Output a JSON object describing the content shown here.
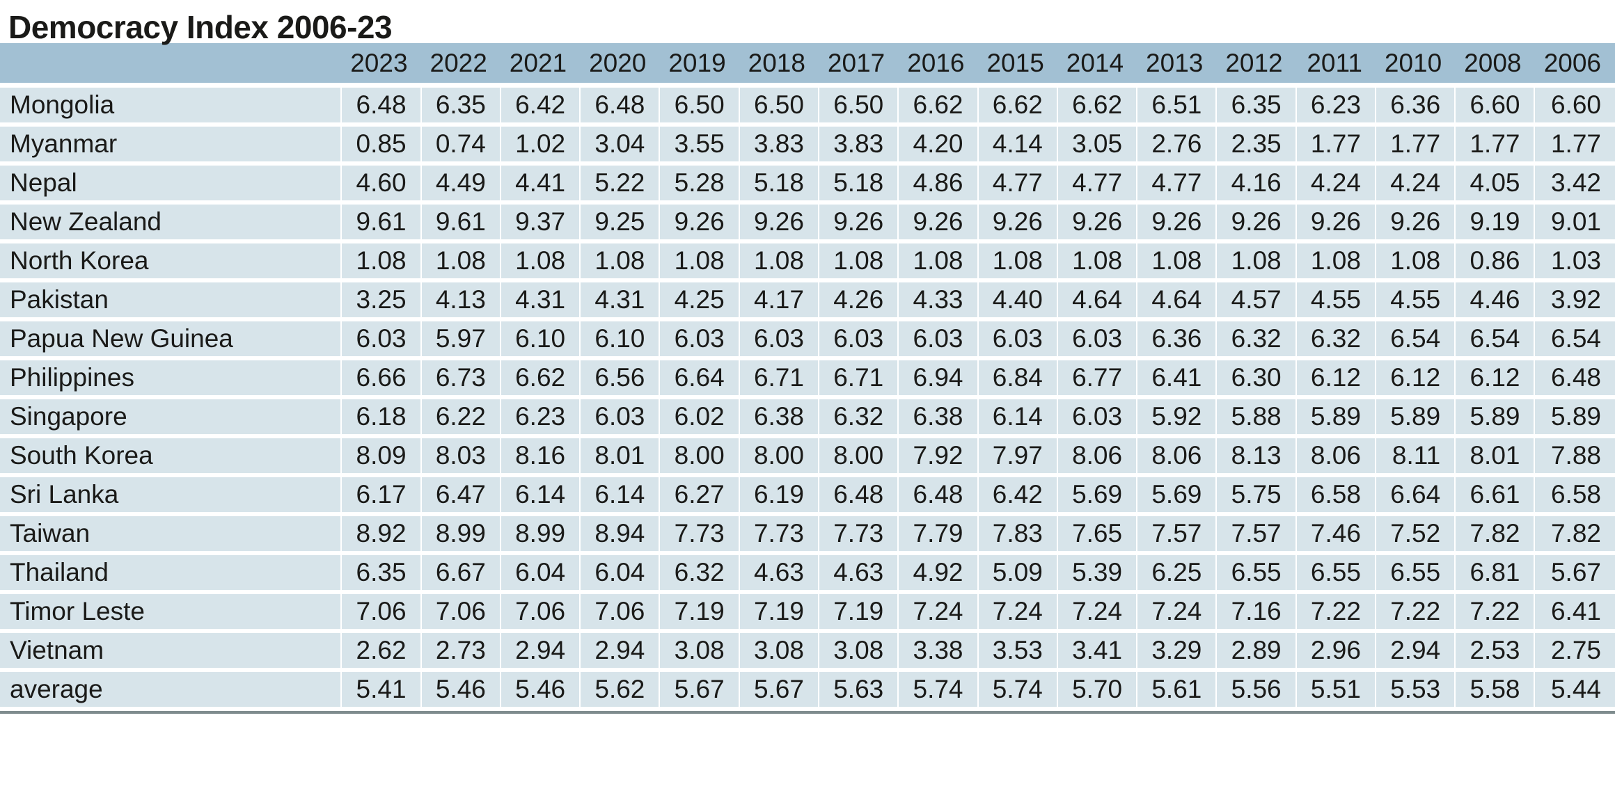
{
  "title": "Democracy Index 2006-23",
  "colors": {
    "header_bg": "#a2c0d3",
    "row_bg": "#d7e4ea",
    "text": "#1a1a18",
    "bottom_rule": "#7f8c8e"
  },
  "chart_data": {
    "type": "table",
    "title": "Democracy Index 2006-23",
    "columns": [
      "2023",
      "2022",
      "2021",
      "2020",
      "2019",
      "2018",
      "2017",
      "2016",
      "2015",
      "2014",
      "2013",
      "2012",
      "2011",
      "2010",
      "2008",
      "2006"
    ],
    "rows": [
      {
        "label": "Mongolia",
        "values": [
          "6.48",
          "6.35",
          "6.42",
          "6.48",
          "6.50",
          "6.50",
          "6.50",
          "6.62",
          "6.62",
          "6.62",
          "6.51",
          "6.35",
          "6.23",
          "6.36",
          "6.60",
          "6.60"
        ]
      },
      {
        "label": "Myanmar",
        "values": [
          "0.85",
          "0.74",
          "1.02",
          "3.04",
          "3.55",
          "3.83",
          "3.83",
          "4.20",
          "4.14",
          "3.05",
          "2.76",
          "2.35",
          "1.77",
          "1.77",
          "1.77",
          "1.77"
        ]
      },
      {
        "label": "Nepal",
        "values": [
          "4.60",
          "4.49",
          "4.41",
          "5.22",
          "5.28",
          "5.18",
          "5.18",
          "4.86",
          "4.77",
          "4.77",
          "4.77",
          "4.16",
          "4.24",
          "4.24",
          "4.05",
          "3.42"
        ]
      },
      {
        "label": "New Zealand",
        "values": [
          "9.61",
          "9.61",
          "9.37",
          "9.25",
          "9.26",
          "9.26",
          "9.26",
          "9.26",
          "9.26",
          "9.26",
          "9.26",
          "9.26",
          "9.26",
          "9.26",
          "9.19",
          "9.01"
        ]
      },
      {
        "label": "North Korea",
        "values": [
          "1.08",
          "1.08",
          "1.08",
          "1.08",
          "1.08",
          "1.08",
          "1.08",
          "1.08",
          "1.08",
          "1.08",
          "1.08",
          "1.08",
          "1.08",
          "1.08",
          "0.86",
          "1.03"
        ]
      },
      {
        "label": "Pakistan",
        "values": [
          "3.25",
          "4.13",
          "4.31",
          "4.31",
          "4.25",
          "4.17",
          "4.26",
          "4.33",
          "4.40",
          "4.64",
          "4.64",
          "4.57",
          "4.55",
          "4.55",
          "4.46",
          "3.92"
        ]
      },
      {
        "label": "Papua New Guinea",
        "values": [
          "6.03",
          "5.97",
          "6.10",
          "6.10",
          "6.03",
          "6.03",
          "6.03",
          "6.03",
          "6.03",
          "6.03",
          "6.36",
          "6.32",
          "6.32",
          "6.54",
          "6.54",
          "6.54"
        ]
      },
      {
        "label": "Philippines",
        "values": [
          "6.66",
          "6.73",
          "6.62",
          "6.56",
          "6.64",
          "6.71",
          "6.71",
          "6.94",
          "6.84",
          "6.77",
          "6.41",
          "6.30",
          "6.12",
          "6.12",
          "6.12",
          "6.48"
        ]
      },
      {
        "label": "Singapore",
        "values": [
          "6.18",
          "6.22",
          "6.23",
          "6.03",
          "6.02",
          "6.38",
          "6.32",
          "6.38",
          "6.14",
          "6.03",
          "5.92",
          "5.88",
          "5.89",
          "5.89",
          "5.89",
          "5.89"
        ]
      },
      {
        "label": "South Korea",
        "values": [
          "8.09",
          "8.03",
          "8.16",
          "8.01",
          "8.00",
          "8.00",
          "8.00",
          "7.92",
          "7.97",
          "8.06",
          "8.06",
          "8.13",
          "8.06",
          "8.11",
          "8.01",
          "7.88"
        ]
      },
      {
        "label": "Sri Lanka",
        "values": [
          "6.17",
          "6.47",
          "6.14",
          "6.14",
          "6.27",
          "6.19",
          "6.48",
          "6.48",
          "6.42",
          "5.69",
          "5.69",
          "5.75",
          "6.58",
          "6.64",
          "6.61",
          "6.58"
        ]
      },
      {
        "label": "Taiwan",
        "values": [
          "8.92",
          "8.99",
          "8.99",
          "8.94",
          "7.73",
          "7.73",
          "7.73",
          "7.79",
          "7.83",
          "7.65",
          "7.57",
          "7.57",
          "7.46",
          "7.52",
          "7.82",
          "7.82"
        ]
      },
      {
        "label": "Thailand",
        "values": [
          "6.35",
          "6.67",
          "6.04",
          "6.04",
          "6.32",
          "4.63",
          "4.63",
          "4.92",
          "5.09",
          "5.39",
          "6.25",
          "6.55",
          "6.55",
          "6.55",
          "6.81",
          "5.67"
        ]
      },
      {
        "label": "Timor Leste",
        "values": [
          "7.06",
          "7.06",
          "7.06",
          "7.06",
          "7.19",
          "7.19",
          "7.19",
          "7.24",
          "7.24",
          "7.24",
          "7.24",
          "7.16",
          "7.22",
          "7.22",
          "7.22",
          "6.41"
        ]
      },
      {
        "label": "Vietnam",
        "values": [
          "2.62",
          "2.73",
          "2.94",
          "2.94",
          "3.08",
          "3.08",
          "3.08",
          "3.38",
          "3.53",
          "3.41",
          "3.29",
          "2.89",
          "2.96",
          "2.94",
          "2.53",
          "2.75"
        ]
      },
      {
        "label": "average",
        "values": [
          "5.41",
          "5.46",
          "5.46",
          "5.62",
          "5.67",
          "5.67",
          "5.63",
          "5.74",
          "5.74",
          "5.70",
          "5.61",
          "5.56",
          "5.51",
          "5.53",
          "5.58",
          "5.44"
        ]
      }
    ]
  }
}
